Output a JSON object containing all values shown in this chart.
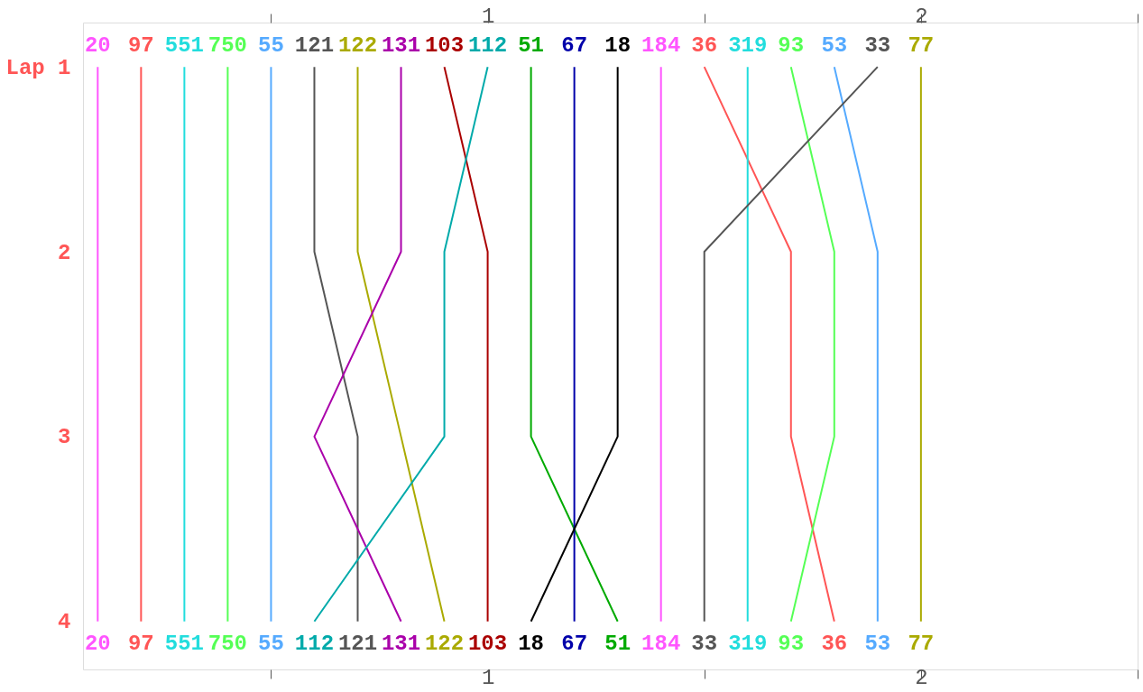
{
  "chart_data": {
    "type": "line",
    "marker": "none",
    "line_style": "solid",
    "grid": false,
    "xlim": [
      0.066,
      2.5
    ],
    "xticks": [
      {
        "value": 0.5,
        "label": null
      },
      1,
      {
        "value": 1.5,
        "label": null
      },
      2,
      {
        "value": 2.5,
        "label": null
      }
    ],
    "x2lim": [
      0.066,
      2.5
    ],
    "x2ticks": [
      {
        "value": 0.5,
        "label": null
      },
      1,
      {
        "value": 1.5,
        "label": null
      },
      2,
      {
        "value": 2.5,
        "label": null
      }
    ],
    "ylim": [
      4.26,
      0.76
    ],
    "yticks": [
      {
        "value": 1,
        "label": "Lap 1"
      },
      2,
      3,
      4
    ],
    "series": [
      {
        "name": "20",
        "color": "#ff55ff",
        "x": [
          0.1,
          0.1,
          0.1,
          0.1
        ],
        "values": [
          1,
          2,
          3,
          4
        ]
      },
      {
        "name": "97",
        "color": "#ff5555",
        "x": [
          0.2,
          0.2,
          0.2,
          0.2
        ],
        "values": [
          1,
          2,
          3,
          4
        ]
      },
      {
        "name": "551",
        "color": "#22dddd",
        "x": [
          0.3,
          0.3,
          0.3,
          0.3
        ],
        "values": [
          1,
          2,
          3,
          4
        ]
      },
      {
        "name": "750",
        "color": "#55ff55",
        "x": [
          0.4,
          0.4,
          0.4,
          0.4
        ],
        "values": [
          1,
          2,
          3,
          4
        ]
      },
      {
        "name": "55",
        "color": "#55aaff",
        "x": [
          0.5,
          0.5,
          0.5,
          0.5
        ],
        "values": [
          1,
          2,
          3,
          4
        ]
      },
      {
        "name": "121",
        "color": "#555555",
        "x": [
          0.6,
          0.6,
          0.7,
          0.7
        ],
        "values": [
          1,
          2,
          3,
          4
        ]
      },
      {
        "name": "122",
        "color": "#aaaa00",
        "x": [
          0.7,
          0.7,
          0.8,
          0.9
        ],
        "values": [
          1,
          2,
          3,
          4
        ]
      },
      {
        "name": "131",
        "color": "#aa00aa",
        "x": [
          0.8,
          0.8,
          0.6,
          0.8
        ],
        "values": [
          1,
          2,
          3,
          4
        ]
      },
      {
        "name": "103",
        "color": "#aa0000",
        "x": [
          0.9,
          1.0,
          1.0,
          1.0
        ],
        "values": [
          1,
          2,
          3,
          4
        ]
      },
      {
        "name": "112",
        "color": "#00aaaa",
        "x": [
          1.0,
          0.9,
          0.9,
          0.6
        ],
        "values": [
          1,
          2,
          3,
          4
        ]
      },
      {
        "name": "51",
        "color": "#00aa00",
        "x": [
          1.1,
          1.1,
          1.1,
          1.3
        ],
        "values": [
          1,
          2,
          3,
          4
        ]
      },
      {
        "name": "67",
        "color": "#0000aa",
        "x": [
          1.2,
          1.2,
          1.2,
          1.2
        ],
        "values": [
          1,
          2,
          3,
          4
        ]
      },
      {
        "name": "18",
        "color": "#000000",
        "x": [
          1.3,
          1.3,
          1.3,
          1.1
        ],
        "values": [
          1,
          2,
          3,
          4
        ]
      },
      {
        "name": "184",
        "color": "#ff55ff",
        "x": [
          1.4,
          1.4,
          1.4,
          1.4
        ],
        "values": [
          1,
          2,
          3,
          4
        ]
      },
      {
        "name": "36",
        "color": "#ff5555",
        "x": [
          1.5,
          1.7,
          1.7,
          1.8
        ],
        "values": [
          1,
          2,
          3,
          4
        ]
      },
      {
        "name": "319",
        "color": "#22dddd",
        "x": [
          1.6,
          1.6,
          1.6,
          1.6
        ],
        "values": [
          1,
          2,
          3,
          4
        ]
      },
      {
        "name": "93",
        "color": "#55ff55",
        "x": [
          1.7,
          1.8,
          1.8,
          1.7
        ],
        "values": [
          1,
          2,
          3,
          4
        ]
      },
      {
        "name": "53",
        "color": "#55aaff",
        "x": [
          1.8,
          1.9,
          1.9,
          1.9
        ],
        "values": [
          1,
          2,
          3,
          4
        ]
      },
      {
        "name": "33",
        "color": "#555555",
        "x": [
          1.9,
          1.5,
          1.5,
          1.5
        ],
        "values": [
          1,
          2,
          3,
          4
        ]
      },
      {
        "name": "77",
        "color": "#aaaa00",
        "x": [
          2.0,
          2.0,
          2.0,
          2.0
        ],
        "values": [
          1,
          2,
          3,
          4
        ]
      }
    ]
  }
}
